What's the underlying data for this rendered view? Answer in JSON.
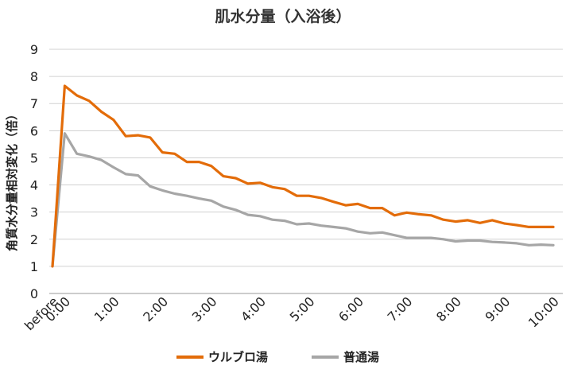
{
  "chart_data": {
    "type": "line",
    "title": "肌水分量（入浴後）",
    "xlabel": "",
    "ylabel": "角質水分量相対変化（倍）",
    "ylim": [
      0,
      9
    ],
    "yticks": [
      "0",
      "1",
      "2",
      "3",
      "4",
      "5",
      "6",
      "7",
      "8",
      "9"
    ],
    "grid": true,
    "legend_position": "bottom",
    "x_labels": [
      "before",
      "0:00",
      "1:00",
      "2:00",
      "3:00",
      "4:00",
      "5:00",
      "6:00",
      "7:00",
      "8:00",
      "9:00",
      "10:00"
    ],
    "x_minutes": [
      -15,
      0,
      15,
      30,
      45,
      60,
      75,
      90,
      105,
      120,
      135,
      150,
      165,
      180,
      195,
      210,
      225,
      240,
      255,
      270,
      285,
      300,
      315,
      330,
      345,
      360,
      375,
      390,
      405,
      420,
      435,
      450,
      465,
      480,
      495,
      510,
      525,
      540,
      555,
      570,
      585,
      600
    ],
    "series": [
      {
        "name": "ウルブロ湯",
        "color": "#e36c09",
        "values": [
          1.0,
          7.65,
          7.3,
          7.1,
          6.7,
          6.4,
          5.8,
          5.83,
          5.75,
          5.2,
          5.15,
          4.85,
          4.85,
          4.7,
          4.32,
          4.25,
          4.05,
          4.08,
          3.92,
          3.85,
          3.6,
          3.6,
          3.52,
          3.38,
          3.25,
          3.3,
          3.15,
          3.15,
          2.88,
          2.98,
          2.92,
          2.88,
          2.72,
          2.65,
          2.7,
          2.6,
          2.7,
          2.58,
          2.52,
          2.45,
          2.45,
          2.45
        ]
      },
      {
        "name": "普通湯",
        "color": "#a6a6a6",
        "values": [
          1.0,
          5.9,
          5.15,
          5.05,
          4.92,
          4.65,
          4.4,
          4.35,
          3.95,
          3.8,
          3.68,
          3.6,
          3.5,
          3.42,
          3.2,
          3.08,
          2.9,
          2.85,
          2.72,
          2.68,
          2.55,
          2.58,
          2.5,
          2.45,
          2.4,
          2.28,
          2.22,
          2.25,
          2.15,
          2.05,
          2.05,
          2.05,
          2.0,
          1.92,
          1.95,
          1.95,
          1.9,
          1.88,
          1.85,
          1.78,
          1.8,
          1.78
        ]
      }
    ]
  }
}
